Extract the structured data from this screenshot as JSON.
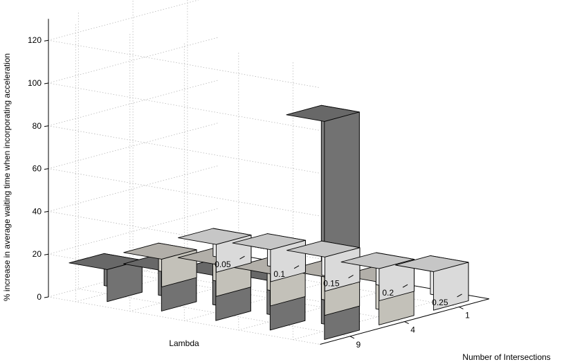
{
  "chart_data": {
    "type": "bar3d",
    "title": "",
    "xlabel": "Lambda",
    "ylabel": "Number of Intersections",
    "zlabel": "% increase in average waiting time when incorporating acceleration",
    "lambda_values": [
      "0.05",
      "0.1",
      "0.15",
      "0.2",
      "0.25"
    ],
    "intersection_values": [
      "1",
      "4",
      "9"
    ],
    "zlim": [
      0,
      130
    ],
    "z_ticks": [
      "0",
      "20",
      "40",
      "60",
      "80",
      "100",
      "120"
    ],
    "grid": true,
    "series": [
      {
        "name": "1",
        "color": "#f2f2f2",
        "values": [
          13,
          15,
          16,
          15,
          18
        ]
      },
      {
        "name": "4",
        "color": "#d9d6ce",
        "values": [
          13,
          15,
          15,
          18,
          20
        ]
      },
      {
        "name": "9",
        "color": "#7f7f7f",
        "values": [
          15,
          19,
          21,
          23,
          102
        ]
      }
    ]
  }
}
